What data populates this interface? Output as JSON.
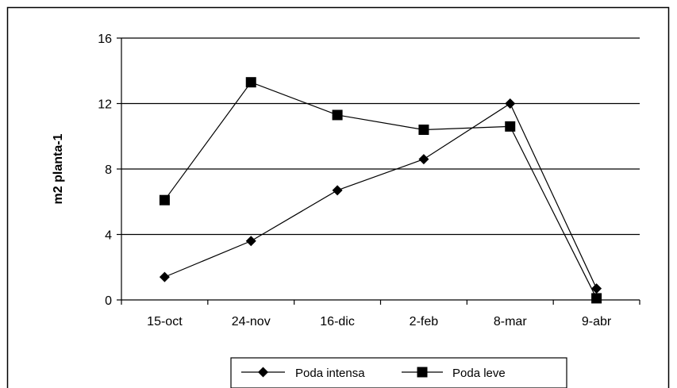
{
  "chart_data": {
    "type": "line",
    "title": "",
    "xlabel": "",
    "ylabel": "m2 planta-1",
    "categories": [
      "15-oct",
      "24-nov",
      "16-dic",
      "2-feb",
      "8-mar",
      "9-abr"
    ],
    "yticks": [
      "0",
      "4",
      "8",
      "12",
      "16"
    ],
    "ylim": [
      0,
      16
    ],
    "grid": "horizontal major lines",
    "legend_position": "bottom",
    "series": [
      {
        "name": "Poda intensa",
        "marker": "diamond",
        "values": [
          1.4,
          3.6,
          6.7,
          8.6,
          12.0,
          0.7
        ]
      },
      {
        "name": "Poda leve",
        "marker": "square",
        "values": [
          6.1,
          13.3,
          11.3,
          10.4,
          10.6,
          0.1
        ]
      }
    ],
    "colors": {
      "line": "#000000",
      "marker": "#000000",
      "background": "#ffffff"
    }
  }
}
